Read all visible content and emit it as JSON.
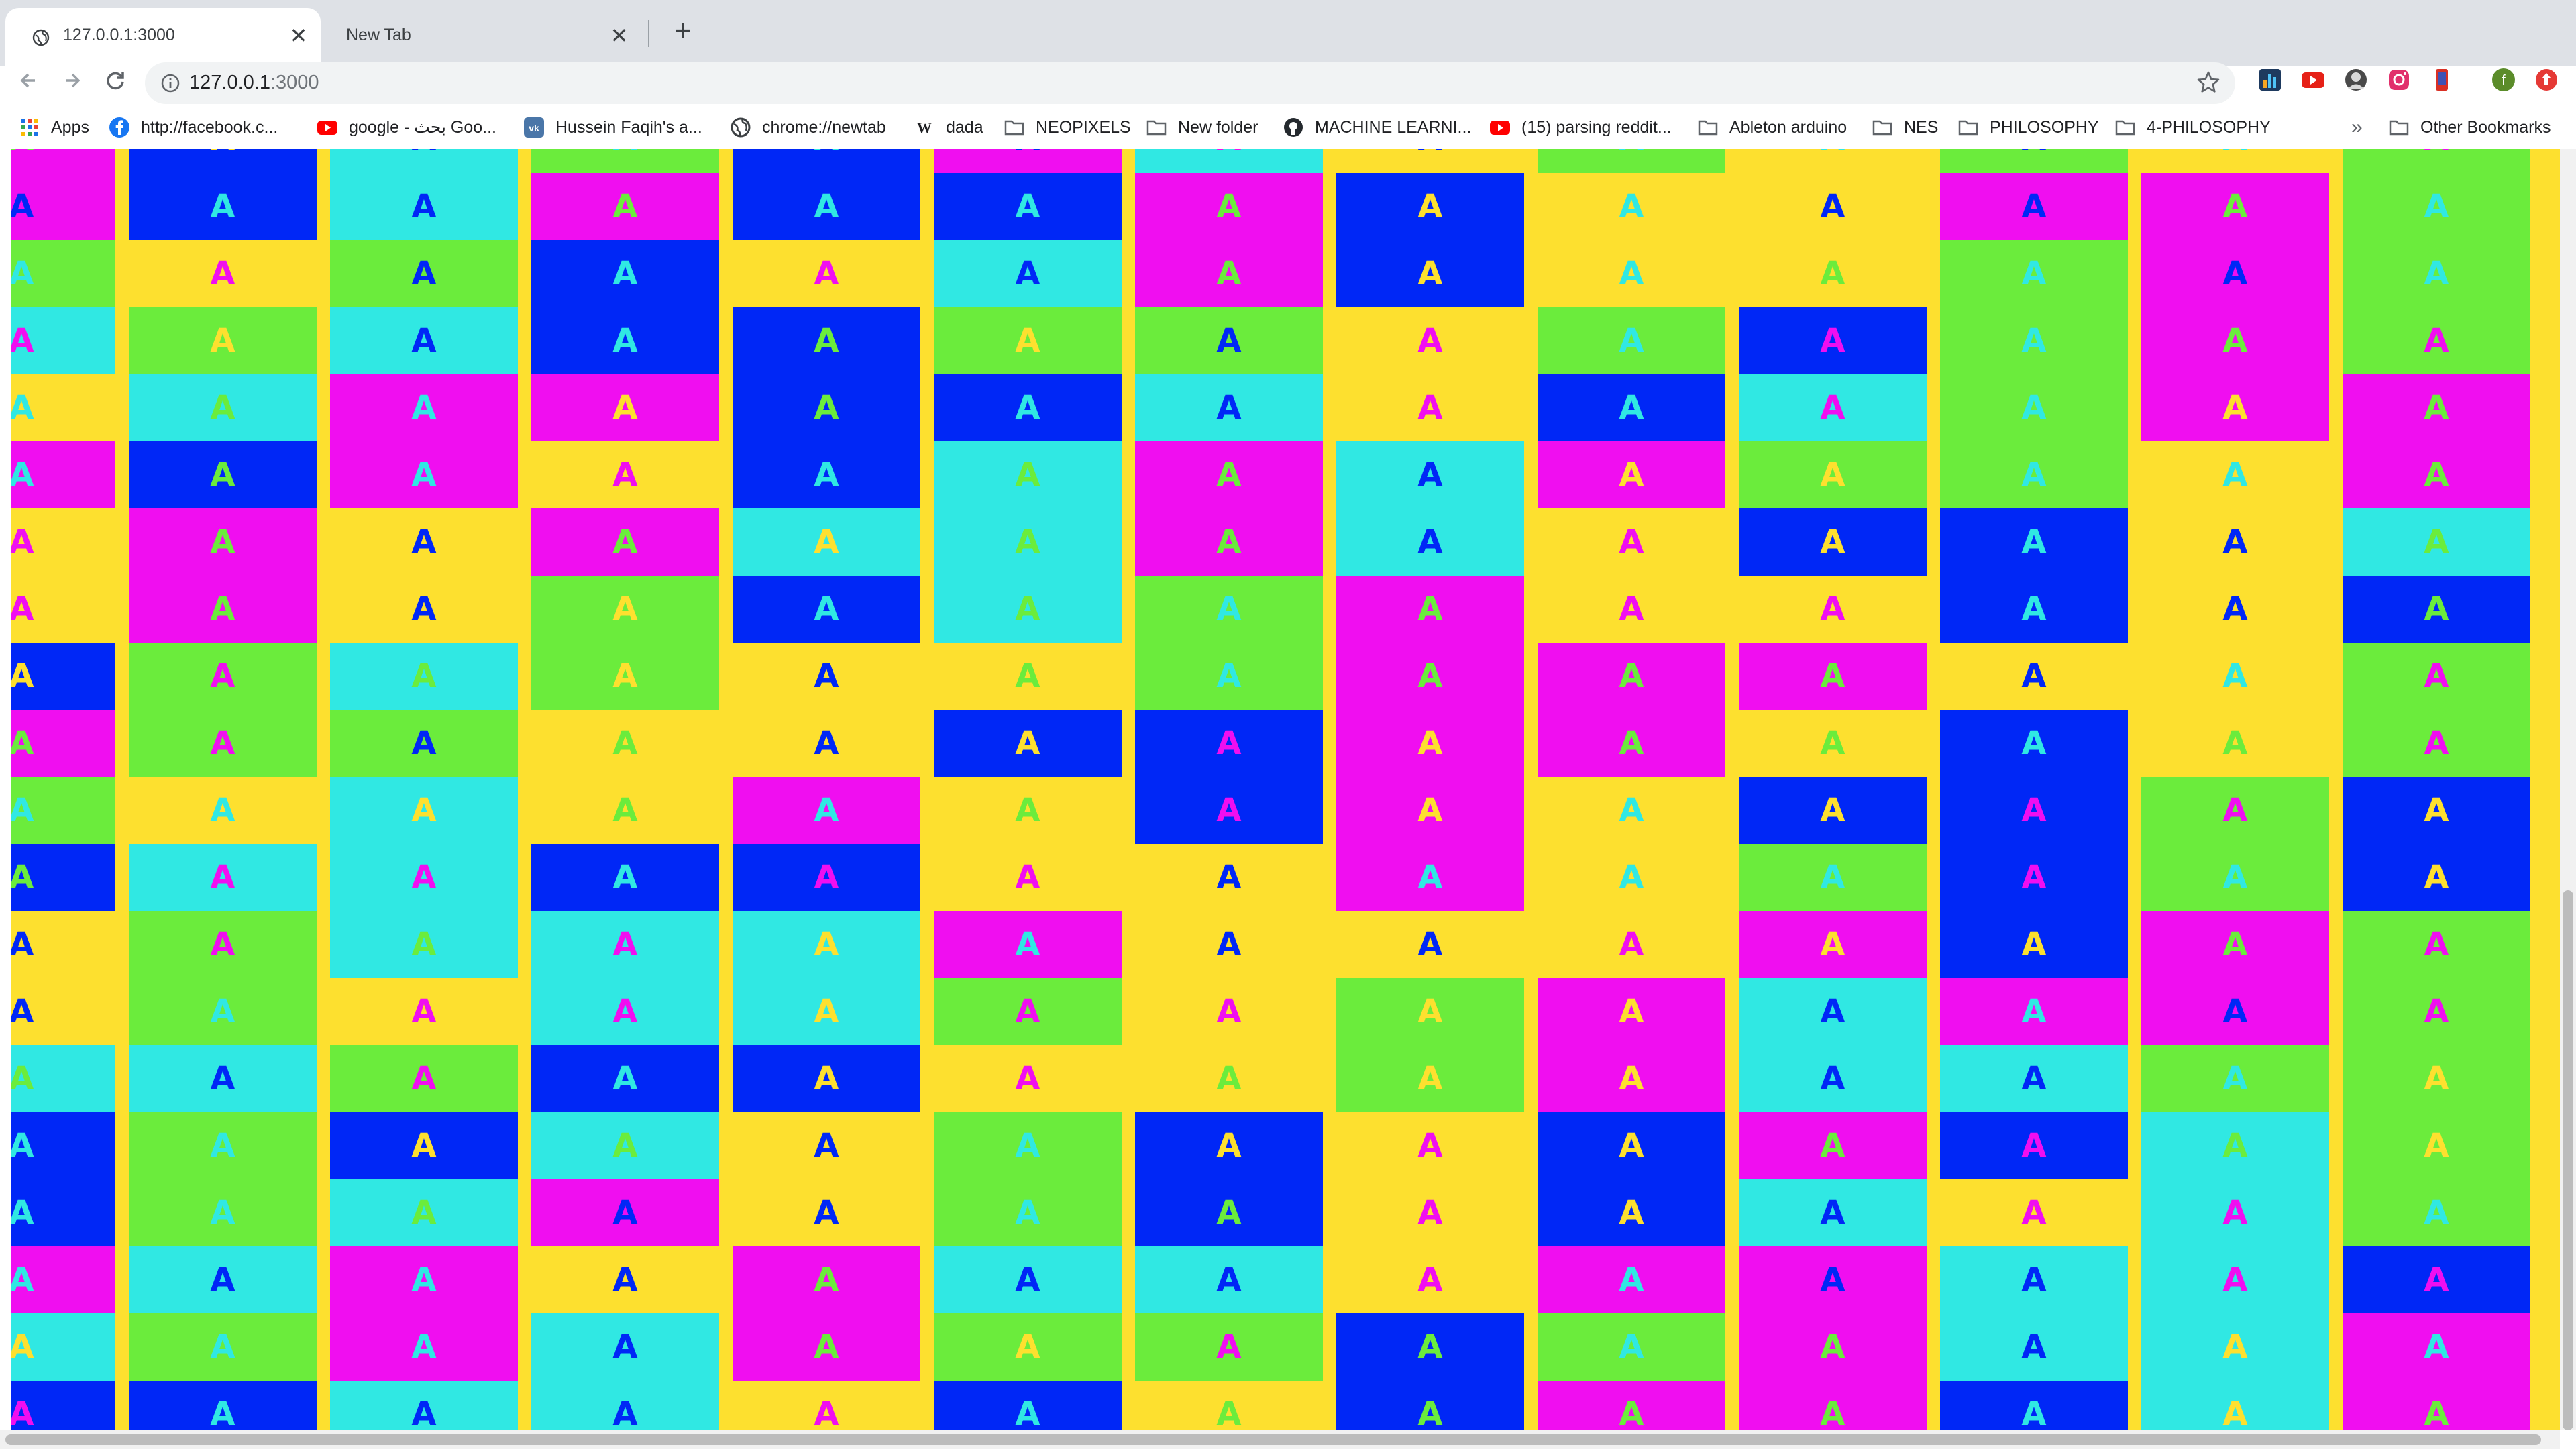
{
  "tabs": [
    {
      "title": "127.0.0.1:3000",
      "active": true
    },
    {
      "title": "New Tab",
      "active": false
    }
  ],
  "toolbar": {
    "url_host": "127.0.0.1",
    "url_port": ":3000"
  },
  "bookmarks": [
    {
      "label": "Apps",
      "icon": "apps-grid-icon"
    },
    {
      "label": "http://facebook.c...",
      "icon": "facebook-icon"
    },
    {
      "label": "google - بحث Goo...",
      "icon": "youtube-icon"
    },
    {
      "label": "Hussein Faqih's a...",
      "icon": "vk-icon"
    },
    {
      "label": "chrome://newtab",
      "icon": "globe-icon"
    },
    {
      "label": "dada",
      "icon": "wikipedia-icon"
    },
    {
      "label": "NEOPIXELS",
      "icon": "folder-icon"
    },
    {
      "label": "New folder",
      "icon": "folder-icon"
    },
    {
      "label": "MACHINE LEARNI...",
      "icon": "github-icon"
    },
    {
      "label": "(15) parsing reddit...",
      "icon": "youtube-icon"
    },
    {
      "label": "Ableton arduino",
      "icon": "folder-icon"
    },
    {
      "label": "NES",
      "icon": "folder-icon"
    },
    {
      "label": "PHILOSOPHY",
      "icon": "folder-icon"
    },
    {
      "label": "4-PHILOSOPHY",
      "icon": "folder-icon"
    },
    {
      "label": "»",
      "icon": "chevron-double-right-icon"
    },
    {
      "label": "Other Bookmarks",
      "icon": "folder-icon"
    }
  ],
  "extensions": [
    "bar-chart-extension-icon",
    "youtube-extension-icon",
    "avatar-extension-icon",
    "instagram-extension-icon",
    "phone-extension-icon",
    "profile-avatar-icon",
    "notification-extension-icon"
  ],
  "colors": {
    "yellow": "#fde02f",
    "cyan": "#30e8e3",
    "magenta": "#f00ef0",
    "blue": "#0027f6",
    "green": "#6bec3c"
  },
  "tile_glyph": "A",
  "tile_palette_order": [
    "yellow",
    "cyan",
    "magenta",
    "blue",
    "green"
  ],
  "tile_grid": {
    "columns": 13,
    "rows": 20
  }
}
